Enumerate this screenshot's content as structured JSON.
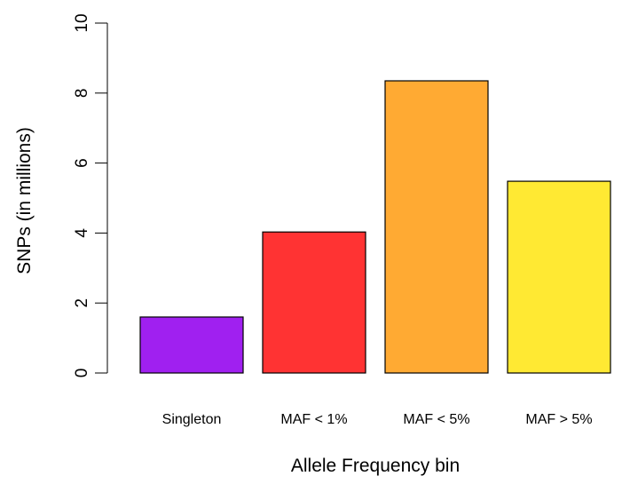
{
  "chart_data": {
    "type": "bar",
    "title": "",
    "xlabel": "Allele Frequency bin",
    "ylabel": "SNPs (in millions)",
    "categories": [
      "Singleton",
      "MAF < 1%",
      "MAF < 5%",
      "MAF > 5%"
    ],
    "values": [
      1.6,
      4.03,
      8.35,
      5.48
    ],
    "colors": [
      "#a020f0",
      "#ff3333",
      "#ffaa33",
      "#ffe933"
    ],
    "ylim": [
      0,
      10
    ],
    "yticks": [
      0,
      2,
      4,
      6,
      8,
      10
    ],
    "grid": false,
    "legend": "none"
  }
}
